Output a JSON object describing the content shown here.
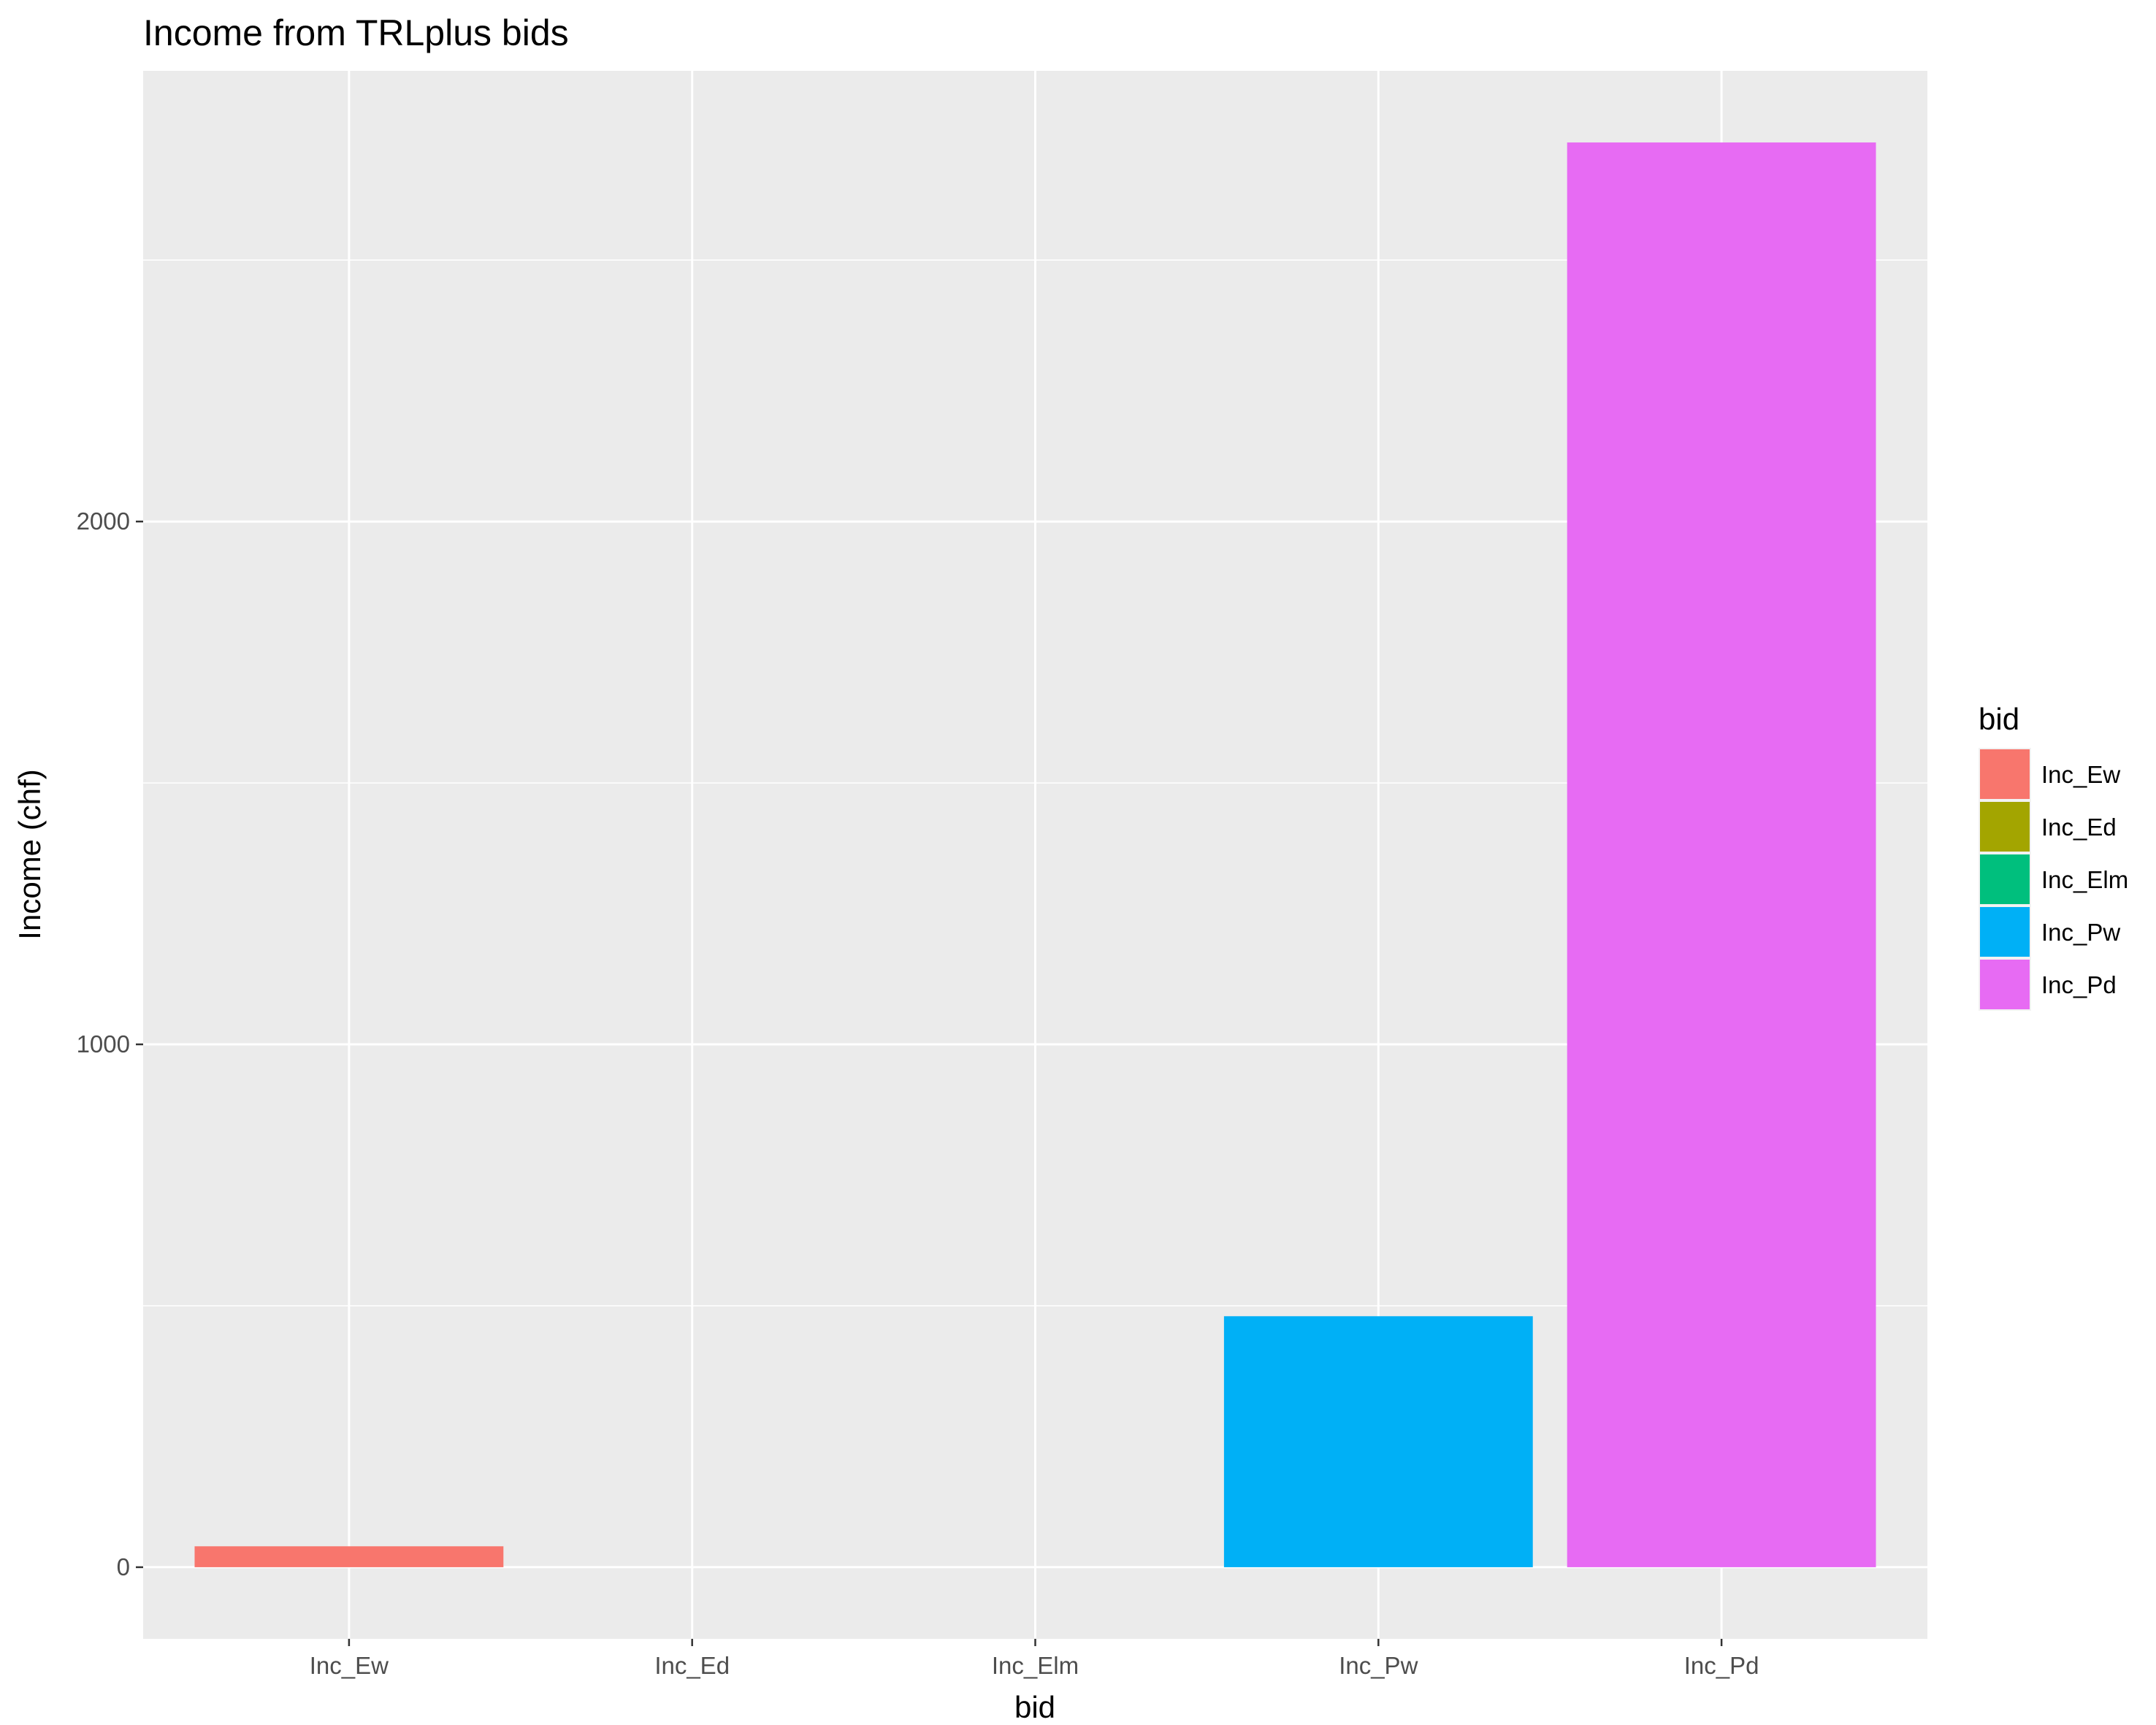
{
  "chart_data": {
    "type": "bar",
    "title": "Income from TRLplus bids",
    "xlabel": "bid",
    "ylabel": "Income (chf)",
    "categories": [
      "Inc_Ew",
      "Inc_Ed",
      "Inc_Elm",
      "Inc_Pw",
      "Inc_Pd"
    ],
    "values": [
      40,
      0,
      0,
      480,
      2725
    ],
    "colors": [
      "#F8766D",
      "#A3A500",
      "#00BF7D",
      "#00B0F6",
      "#E76BF3"
    ],
    "ylim": [
      -137,
      2862
    ],
    "yticks": [
      0,
      1000,
      2000
    ],
    "ytick_labels": [
      "0",
      "1000",
      "2000"
    ],
    "grid": true,
    "legend": {
      "title": "bid",
      "position": "right",
      "items": [
        "Inc_Ew",
        "Inc_Ed",
        "Inc_Elm",
        "Inc_Pw",
        "Inc_Pd"
      ]
    },
    "style": {
      "panel_background": "#EBEBEB",
      "grid_color": "#FFFFFF"
    }
  }
}
